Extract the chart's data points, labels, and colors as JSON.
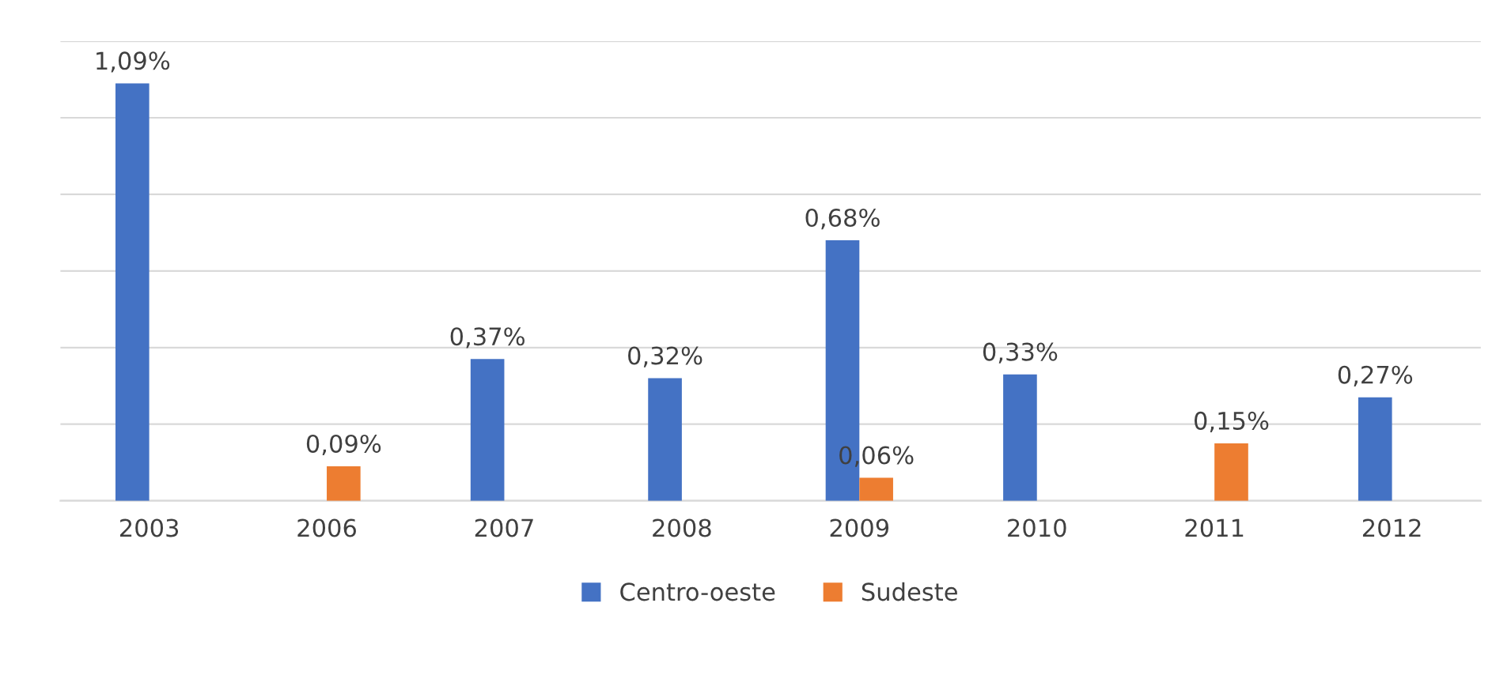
{
  "chart_data": {
    "type": "bar",
    "categories": [
      "2003",
      "2006",
      "2007",
      "2008",
      "2009",
      "2010",
      "2011",
      "2012"
    ],
    "series": [
      {
        "name": "Centro-oeste",
        "color": "#4472c4",
        "values": [
          1.09,
          null,
          0.37,
          0.32,
          0.68,
          0.33,
          null,
          0.27
        ],
        "value_labels": [
          "1,09%",
          null,
          "0,37%",
          "0,32%",
          "0,68%",
          "0,33%",
          null,
          "0,27%"
        ]
      },
      {
        "name": "Sudeste",
        "color": "#ed7d31",
        "values": [
          null,
          0.09,
          null,
          null,
          0.06,
          null,
          0.15,
          null
        ],
        "value_labels": [
          null,
          "0,09%",
          null,
          null,
          "0,06%",
          null,
          "0,15%",
          null
        ]
      }
    ],
    "ylim": [
      0,
      1.2
    ],
    "yticks": [
      {
        "value": 0,
        "label": null
      },
      {
        "value": 0.2,
        "label": null
      },
      {
        "value": 0.4,
        "label": null
      },
      {
        "value": 0.6,
        "label": null
      },
      {
        "value": 0.8,
        "label": null
      },
      {
        "value": 1.0,
        "label": null
      },
      {
        "value": 1.2,
        "label": null
      }
    ],
    "tick_labels": "x",
    "grid": "y",
    "legend": "bottom"
  }
}
